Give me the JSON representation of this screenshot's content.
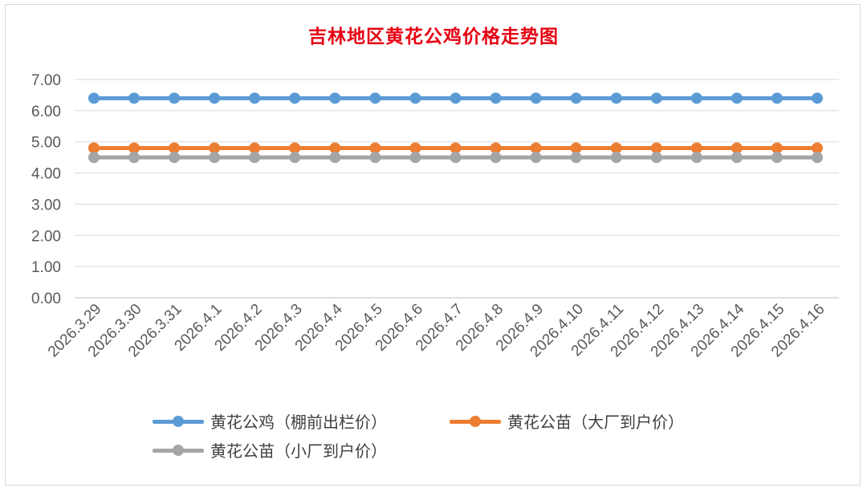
{
  "chart_data": {
    "type": "line",
    "title": "吉林地区黄花公鸡价格走势图",
    "x": [
      "2026.3.29",
      "2026.3.30",
      "2026.3.31",
      "2026.4.1",
      "2026.4.2",
      "2026.4.3",
      "2026.4.4",
      "2026.4.5",
      "2026.4.6",
      "2026.4.7",
      "2026.4.8",
      "2026.4.9",
      "2026.4.10",
      "2026.4.11",
      "2026.4.12",
      "2026.4.13",
      "2026.4.14",
      "2026.4.15",
      "2026.4.16"
    ],
    "ylim": [
      0,
      7
    ],
    "yticks": [
      "0.00",
      "1.00",
      "2.00",
      "3.00",
      "4.00",
      "5.00",
      "6.00",
      "7.00"
    ],
    "grid": true,
    "legend_position": "bottom",
    "series": [
      {
        "name": "黄花公鸡（棚前出栏价）",
        "color": "#5b9bd5",
        "values": [
          6.4,
          6.4,
          6.4,
          6.4,
          6.4,
          6.4,
          6.4,
          6.4,
          6.4,
          6.4,
          6.4,
          6.4,
          6.4,
          6.4,
          6.4,
          6.4,
          6.4,
          6.4,
          6.4
        ]
      },
      {
        "name": "黄花公苗（大厂到户价）",
        "color": "#ed7d31",
        "values": [
          4.8,
          4.8,
          4.8,
          4.8,
          4.8,
          4.8,
          4.8,
          4.8,
          4.8,
          4.8,
          4.8,
          4.8,
          4.8,
          4.8,
          4.8,
          4.8,
          4.8,
          4.8,
          4.8
        ]
      },
      {
        "name": "黄花公苗（小厂到户价）",
        "color": "#a5a5a5",
        "values": [
          4.5,
          4.5,
          4.5,
          4.5,
          4.5,
          4.5,
          4.5,
          4.5,
          4.5,
          4.5,
          4.5,
          4.5,
          4.5,
          4.5,
          4.5,
          4.5,
          4.5,
          4.5,
          4.5
        ]
      }
    ]
  }
}
